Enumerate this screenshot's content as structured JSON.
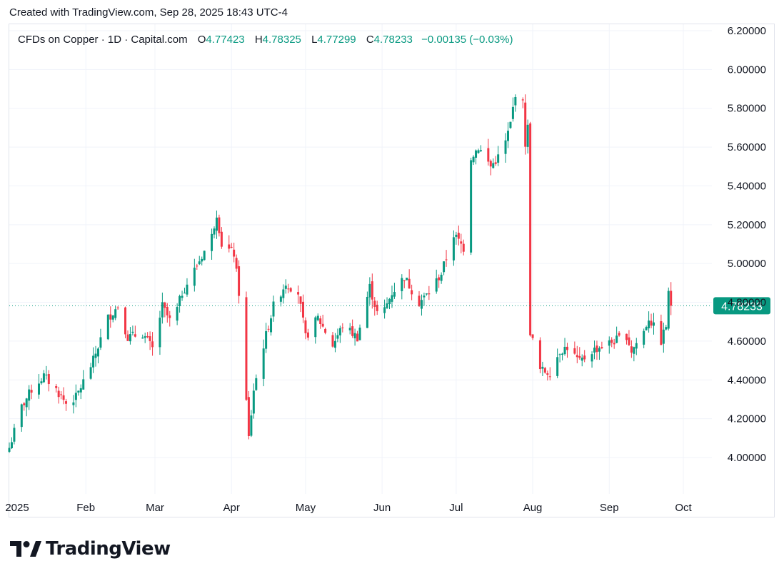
{
  "header": {
    "caption": "Created with TradingView.com, Sep 28, 2025 18:43 UTC-4"
  },
  "legend": {
    "symbol": "CFDs on Copper · 1D · Capital.com",
    "open_label": "O",
    "open": "4.77423",
    "high_label": "H",
    "high": "4.78325",
    "low_label": "L",
    "low": "4.77299",
    "close_label": "C",
    "close": "4.78233",
    "change": "−0.00135 (−0.03%)"
  },
  "brand": {
    "name": "TradingView",
    "logo": "tradingview-logo-icon"
  },
  "colors": {
    "up": "#089981",
    "down": "#f23645",
    "grid": "#f0f3fa",
    "text": "#131722",
    "price_tag": "#089981"
  },
  "chart_data": {
    "type": "candlestick",
    "title": "CFDs on Copper · 1D · Capital.com",
    "grid": true,
    "y_axis_side": "right",
    "ylim": [
      3.88,
      6.2
    ],
    "y_ticks": [
      "6.20000",
      "6.00000",
      "5.80000",
      "5.60000",
      "5.40000",
      "5.20000",
      "5.00000",
      "4.80000",
      "4.60000",
      "4.40000",
      "4.20000",
      "4.00000"
    ],
    "y_tick_values": [
      6.2,
      6.0,
      5.8,
      5.6,
      5.4,
      5.2,
      5.0,
      4.8,
      4.6,
      4.4,
      4.2,
      4.0
    ],
    "x_ticks": [
      {
        "label": "2025",
        "date": "2025-01-01"
      },
      {
        "label": "Feb",
        "date": "2025-02-01"
      },
      {
        "label": "Mar",
        "date": "2025-03-01"
      },
      {
        "label": "Apr",
        "date": "2025-04-01"
      },
      {
        "label": "May",
        "date": "2025-05-01"
      },
      {
        "label": "Jun",
        "date": "2025-06-01"
      },
      {
        "label": "Jul",
        "date": "2025-07-01"
      },
      {
        "label": "Aug",
        "date": "2025-08-01"
      },
      {
        "label": "Sep",
        "date": "2025-09-01"
      },
      {
        "label": "Oct",
        "date": "2025-10-01"
      }
    ],
    "x_range": [
      "2025-01-01",
      "2025-10-31"
    ],
    "last_price": 4.78233,
    "last_price_label": "4.78233",
    "anchors": [
      [
        "2025-01-01",
        4.05
      ],
      [
        "2025-01-06",
        4.26
      ],
      [
        "2025-01-10",
        4.35
      ],
      [
        "2025-01-15",
        4.42
      ],
      [
        "2025-01-20",
        4.35
      ],
      [
        "2025-01-24",
        4.28
      ],
      [
        "2025-01-28",
        4.31
      ],
      [
        "2025-02-04",
        4.5
      ],
      [
        "2025-02-10",
        4.72
      ],
      [
        "2025-02-14",
        4.78
      ],
      [
        "2025-02-18",
        4.62
      ],
      [
        "2025-02-24",
        4.64
      ],
      [
        "2025-02-28",
        4.56
      ],
      [
        "2025-03-04",
        4.78
      ],
      [
        "2025-03-08",
        4.68
      ],
      [
        "2025-03-12",
        4.85
      ],
      [
        "2025-03-18",
        4.99
      ],
      [
        "2025-03-24",
        5.14
      ],
      [
        "2025-03-26",
        5.26
      ],
      [
        "2025-03-28",
        5.1
      ],
      [
        "2025-04-02",
        5.05
      ],
      [
        "2025-04-04",
        4.85
      ],
      [
        "2025-04-08",
        4.1
      ],
      [
        "2025-04-10",
        4.35
      ],
      [
        "2025-04-14",
        4.58
      ],
      [
        "2025-04-18",
        4.78
      ],
      [
        "2025-04-23",
        4.9
      ],
      [
        "2025-04-28",
        4.85
      ],
      [
        "2025-05-01",
        4.62
      ],
      [
        "2025-05-06",
        4.72
      ],
      [
        "2025-05-12",
        4.58
      ],
      [
        "2025-05-16",
        4.68
      ],
      [
        "2025-05-22",
        4.62
      ],
      [
        "2025-05-27",
        4.88
      ],
      [
        "2025-05-31",
        4.7
      ],
      [
        "2025-06-05",
        4.85
      ],
      [
        "2025-06-10",
        4.93
      ],
      [
        "2025-06-16",
        4.8
      ],
      [
        "2025-06-20",
        4.85
      ],
      [
        "2025-06-25",
        4.95
      ],
      [
        "2025-06-30",
        5.15
      ],
      [
        "2025-07-04",
        5.08
      ],
      [
        "2025-07-06",
        5.0
      ],
      [
        "2025-07-07",
        5.55
      ],
      [
        "2025-07-10",
        5.6
      ],
      [
        "2025-07-15",
        5.5
      ],
      [
        "2025-07-20",
        5.58
      ],
      [
        "2025-07-23",
        5.72
      ],
      [
        "2025-07-25",
        5.88
      ],
      [
        "2025-07-28",
        5.82
      ],
      [
        "2025-07-29",
        5.62
      ],
      [
        "2025-07-30",
        5.7
      ],
      [
        "2025-07-31",
        4.65
      ],
      [
        "2025-08-04",
        4.45
      ],
      [
        "2025-08-08",
        4.44
      ],
      [
        "2025-08-12",
        4.55
      ],
      [
        "2025-08-15",
        4.57
      ],
      [
        "2025-08-20",
        4.49
      ],
      [
        "2025-08-25",
        4.55
      ],
      [
        "2025-08-30",
        4.58
      ],
      [
        "2025-09-03",
        4.6
      ],
      [
        "2025-09-08",
        4.63
      ],
      [
        "2025-09-10",
        4.55
      ],
      [
        "2025-09-15",
        4.65
      ],
      [
        "2025-09-17",
        4.72
      ],
      [
        "2025-09-22",
        4.6
      ],
      [
        "2025-09-24",
        4.68
      ],
      [
        "2025-09-25",
        4.84
      ],
      [
        "2025-09-26",
        4.8
      ],
      [
        "2025-09-28",
        4.78233
      ]
    ]
  }
}
